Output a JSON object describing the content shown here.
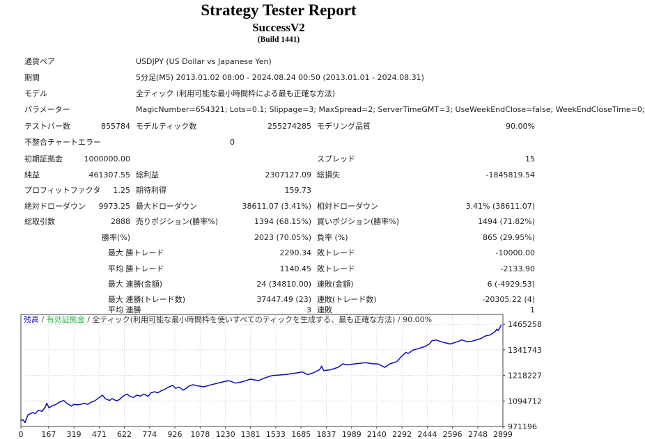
{
  "title": {
    "main": "Strategy Tester Report",
    "subtitle": "SuccessV2",
    "build": "(Build 1441)"
  },
  "report": {
    "rows": [
      {
        "cells": [
          {
            "col": "c1",
            "text": "通貨ペア"
          },
          {
            "col": "c3w",
            "text": "USDJPY (US Dollar vs Japanese Yen)"
          }
        ]
      },
      {
        "cells": [
          {
            "col": "c1",
            "text": "期間"
          },
          {
            "col": "c3w",
            "text": "5分足(M5) 2013.01.02 08:00 - 2024.08.24 00:50 (2013.01.01 - 2024.08.31)"
          }
        ]
      },
      {
        "cells": [
          {
            "col": "c1",
            "text": "モデル"
          },
          {
            "col": "c3w",
            "text": "全ティック (利用可能な最小時間枠による最も正確な方法)"
          }
        ]
      },
      {
        "cells": [
          {
            "col": "c1",
            "text": "パラメーター"
          },
          {
            "col": "c3w",
            "text": "MagicNumber=654321; Lots=0.1; Slippage=3; MaxSpread=2; ServerTimeGMT=3; UseWeekEndClose=false; WeekEndCloseTime=0;"
          }
        ]
      },
      {
        "cells": [
          {
            "col": "c1",
            "text": "テストバー数"
          },
          {
            "col": "c2",
            "text": "855784"
          },
          {
            "col": "c3",
            "text": "モデルティック数"
          },
          {
            "col": "c4",
            "text": "255274285"
          },
          {
            "col": "c5",
            "text": "モデリング品質"
          },
          {
            "col": "c6",
            "text": "90.00%"
          }
        ]
      },
      {
        "cells": [
          {
            "col": "c1",
            "text": "不整合チャートエラー"
          },
          {
            "col": "cz",
            "text": "0"
          }
        ]
      },
      {
        "cells": [
          {
            "col": "c1",
            "text": "初期証拠金"
          },
          {
            "col": "c2",
            "text": "1000000.00"
          },
          {
            "col": "c5",
            "text": "スプレッド"
          },
          {
            "col": "c6",
            "text": "15"
          }
        ]
      },
      {
        "cells": [
          {
            "col": "c1",
            "text": "純益"
          },
          {
            "col": "c2",
            "text": "461307.55"
          },
          {
            "col": "c3",
            "text": "総利益"
          },
          {
            "col": "c4",
            "text": "2307127.09"
          },
          {
            "col": "c5",
            "text": "総損失"
          },
          {
            "col": "c6",
            "text": "-1845819.54"
          }
        ]
      },
      {
        "cells": [
          {
            "col": "c1",
            "text": "プロフィットファクタ"
          },
          {
            "col": "c2",
            "text": "1.25"
          },
          {
            "col": "c3",
            "text": "期待利得"
          },
          {
            "col": "c4",
            "text": "159.73"
          }
        ]
      },
      {
        "cells": [
          {
            "col": "c1",
            "text": "絶対ドローダウン"
          },
          {
            "col": "c2",
            "text": "9973.25"
          },
          {
            "col": "c3",
            "text": "最大ドローダウン"
          },
          {
            "col": "c4",
            "text": "38611.07 (3.41%)"
          },
          {
            "col": "c5",
            "text": "相対ドローダウン"
          },
          {
            "col": "c6",
            "text": "3.41% (38611.07)"
          }
        ]
      },
      {
        "cells": [
          {
            "col": "c1",
            "text": "総取引数"
          },
          {
            "col": "c2",
            "text": "2888"
          },
          {
            "col": "c3",
            "text": "売りポジション(勝率%)"
          },
          {
            "col": "c4",
            "text": "1394 (68.15%)"
          },
          {
            "col": "c5",
            "text": "買いポジション(勝率%)"
          },
          {
            "col": "c6",
            "text": "1494 (71.82%)"
          }
        ]
      },
      {
        "cells": [
          {
            "col": "c2",
            "text": "勝率(%)"
          },
          {
            "col": "c4",
            "text": "2023 (70.05%)"
          },
          {
            "col": "c5",
            "text": "負率 (%)"
          },
          {
            "col": "c6",
            "text": "865 (29.95%)"
          }
        ]
      },
      {
        "cells": [
          {
            "col": "cq",
            "text": "最大 勝トレード"
          },
          {
            "col": "c4",
            "text": "2290.34"
          },
          {
            "col": "c5",
            "text": "敗トレード"
          },
          {
            "col": "c6",
            "text": "-10000.00"
          }
        ]
      },
      {
        "cells": [
          {
            "col": "cq",
            "text": "平均 勝トレード"
          },
          {
            "col": "c4",
            "text": "1140.45"
          },
          {
            "col": "c5",
            "text": "敗トレード"
          },
          {
            "col": "c6",
            "text": "-2133.90"
          }
        ]
      },
      {
        "cells": [
          {
            "col": "cq",
            "text": "最大 連勝(金額)"
          },
          {
            "col": "c4",
            "text": "24 (34810.00)"
          },
          {
            "col": "c5",
            "text": "連敗(金額)"
          },
          {
            "col": "c6",
            "text": "6 (-4929.53)"
          }
        ]
      },
      {
        "cells": [
          {
            "col": "cq",
            "text": "最大 連勝(トレード数)"
          },
          {
            "col": "c4",
            "text": "37447.49 (23)"
          },
          {
            "col": "c5",
            "text": "連敗(トレード数)"
          },
          {
            "col": "c6",
            "text": "-20305.22 (4)"
          }
        ]
      },
      {
        "cells": [
          {
            "col": "cq",
            "text": "平均 連勝"
          },
          {
            "col": "c4",
            "text": "3"
          },
          {
            "col": "c5",
            "text": "連敗"
          },
          {
            "col": "c6",
            "text": "1"
          }
        ]
      }
    ]
  },
  "chart_data": {
    "type": "line",
    "legend": {
      "balance": "残高",
      "equity": "有効証拠金",
      "model": "全ティック(利用可能な最小時間枠を使いすべてのティックを生成する、最も正確な方法)",
      "quality": "90.00%",
      "sep": " / "
    },
    "x_ticks": [
      0,
      167,
      319,
      471,
      622,
      774,
      926,
      1078,
      1230,
      1381,
      1533,
      1685,
      1837,
      1989,
      2140,
      2292,
      2444,
      2596,
      2748,
      2899
    ],
    "y_ticks": [
      971196,
      1094712,
      1218227,
      1341743,
      1465258
    ],
    "xlim": [
      0,
      2899
    ],
    "ylim": [
      971196,
      1513100
    ],
    "grid": true,
    "colors": {
      "balance_line": "#0d0db8",
      "legend_balance": "#2525b4",
      "legend_equity": "#2ab44e",
      "grid": "#cdcdcd",
      "axis": "#444444",
      "tick_label": "#222222"
    },
    "series": [
      {
        "name": "残高",
        "points": [
          [
            0,
            1000000
          ],
          [
            12,
            1004000
          ],
          [
            25,
            990100
          ],
          [
            42,
            1027000
          ],
          [
            60,
            1034000
          ],
          [
            72,
            1039000
          ],
          [
            85,
            1033000
          ],
          [
            106,
            1050000
          ],
          [
            127,
            1044000
          ],
          [
            148,
            1067000
          ],
          [
            156,
            1084000
          ],
          [
            169,
            1061000
          ],
          [
            190,
            1072000
          ],
          [
            211,
            1078000
          ],
          [
            232,
            1089000
          ],
          [
            258,
            1097000
          ],
          [
            275,
            1084000
          ],
          [
            304,
            1069000
          ],
          [
            317,
            1078000
          ],
          [
            338,
            1076000
          ],
          [
            359,
            1078000
          ],
          [
            380,
            1084000
          ],
          [
            402,
            1078000
          ],
          [
            423,
            1089000
          ],
          [
            444,
            1095000
          ],
          [
            473,
            1112000
          ],
          [
            490,
            1123000
          ],
          [
            507,
            1106000
          ],
          [
            533,
            1097000
          ],
          [
            549,
            1106000
          ],
          [
            575,
            1095000
          ],
          [
            592,
            1101000
          ],
          [
            613,
            1117000
          ],
          [
            638,
            1128000
          ],
          [
            655,
            1117000
          ],
          [
            676,
            1112000
          ],
          [
            697,
            1123000
          ],
          [
            719,
            1118000
          ],
          [
            740,
            1128000
          ],
          [
            765,
            1117000
          ],
          [
            782,
            1134000
          ],
          [
            803,
            1139000
          ],
          [
            824,
            1134000
          ],
          [
            845,
            1145000
          ],
          [
            866,
            1151000
          ],
          [
            888,
            1162000
          ],
          [
            913,
            1170000
          ],
          [
            930,
            1156000
          ],
          [
            951,
            1162000
          ],
          [
            976,
            1147000
          ],
          [
            993,
            1155000
          ],
          [
            1014,
            1168000
          ],
          [
            1036,
            1173000
          ],
          [
            1060,
            1168000
          ],
          [
            1100,
            1163000
          ],
          [
            1140,
            1172000
          ],
          [
            1205,
            1185000
          ],
          [
            1250,
            1193000
          ],
          [
            1290,
            1181000
          ],
          [
            1330,
            1187000
          ],
          [
            1380,
            1200000
          ],
          [
            1430,
            1193000
          ],
          [
            1470,
            1207000
          ],
          [
            1513,
            1218000
          ],
          [
            1585,
            1222000
          ],
          [
            1627,
            1226000
          ],
          [
            1695,
            1235000
          ],
          [
            1724,
            1222000
          ],
          [
            1754,
            1229000
          ],
          [
            1796,
            1246000
          ],
          [
            1809,
            1263000
          ],
          [
            1822,
            1241000
          ],
          [
            1864,
            1246000
          ],
          [
            1906,
            1257000
          ],
          [
            1936,
            1274000
          ],
          [
            1965,
            1269000
          ],
          [
            2008,
            1274000
          ],
          [
            2075,
            1280000
          ],
          [
            2118,
            1274000
          ],
          [
            2147,
            1274000
          ],
          [
            2189,
            1257000
          ],
          [
            2219,
            1274000
          ],
          [
            2261,
            1285000
          ],
          [
            2287,
            1308000
          ],
          [
            2316,
            1330000
          ],
          [
            2329,
            1324000
          ],
          [
            2359,
            1341000
          ],
          [
            2388,
            1347000
          ],
          [
            2430,
            1358000
          ],
          [
            2456,
            1370000
          ],
          [
            2472,
            1386000
          ],
          [
            2498,
            1390000
          ],
          [
            2527,
            1381000
          ],
          [
            2557,
            1375000
          ],
          [
            2582,
            1370000
          ],
          [
            2625,
            1381000
          ],
          [
            2654,
            1390000
          ],
          [
            2684,
            1381000
          ],
          [
            2709,
            1383000
          ],
          [
            2739,
            1390000
          ],
          [
            2768,
            1397000
          ],
          [
            2794,
            1409000
          ],
          [
            2823,
            1414000
          ],
          [
            2853,
            1431000
          ],
          [
            2862,
            1442000
          ],
          [
            2870,
            1435000
          ],
          [
            2880,
            1448000
          ],
          [
            2888,
            1461308
          ]
        ]
      }
    ]
  }
}
